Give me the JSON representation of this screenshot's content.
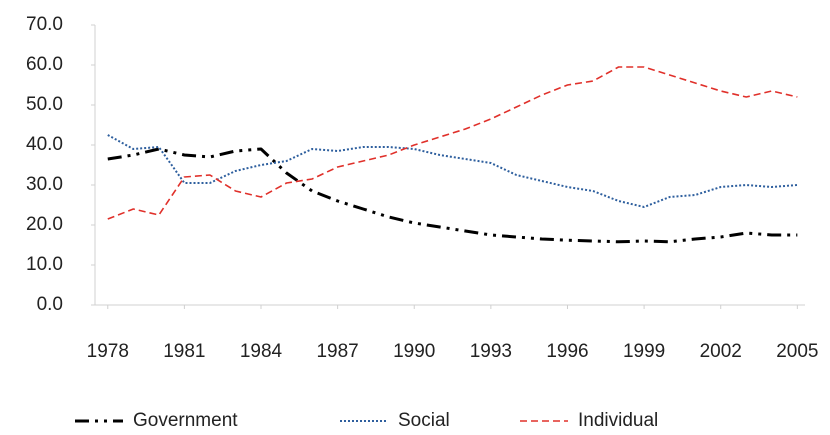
{
  "chart_data": {
    "type": "line",
    "x": [
      1978,
      1979,
      1980,
      1981,
      1982,
      1983,
      1984,
      1985,
      1986,
      1987,
      1988,
      1989,
      1990,
      1991,
      1992,
      1993,
      1994,
      1995,
      1996,
      1997,
      1998,
      1999,
      2000,
      2001,
      2002,
      2003,
      2004,
      2005
    ],
    "series": [
      {
        "name": "Government",
        "color": "#000000",
        "style": "dashdot",
        "values": [
          36.5,
          37.5,
          39,
          37.5,
          37,
          38.5,
          39,
          33,
          28.5,
          26,
          24,
          22,
          20.5,
          19.5,
          18.5,
          17.5,
          17,
          16.5,
          16.2,
          16,
          15.8,
          16,
          15.8,
          16.5,
          17,
          18,
          17.5,
          17.5
        ]
      },
      {
        "name": "Social",
        "color": "#2e5f9e",
        "style": "dotted",
        "values": [
          42.5,
          39,
          39.5,
          30.5,
          30.5,
          33.5,
          35,
          36,
          39,
          38.5,
          39.5,
          39.5,
          39,
          37.5,
          36.5,
          35.5,
          32.5,
          31,
          29.5,
          28.5,
          26,
          24.5,
          27,
          27.5,
          29.5,
          30,
          29.5,
          30
        ]
      },
      {
        "name": "Individual",
        "color": "#e0302a",
        "style": "dashed",
        "values": [
          21.5,
          24,
          22.5,
          32,
          32.5,
          28.5,
          27,
          30.5,
          31.5,
          34.5,
          36,
          37.5,
          40,
          42,
          44,
          46.5,
          49.5,
          52.5,
          55,
          56,
          59.5,
          59.5,
          57.5,
          55.5,
          53.5,
          52,
          53.5,
          52
        ]
      }
    ],
    "xlim": [
      1977.5,
      2005.3
    ],
    "xticks": [
      1978,
      1981,
      1984,
      1987,
      1990,
      1993,
      1996,
      1999,
      2002,
      2005
    ],
    "ylim": [
      0,
      70
    ],
    "yticks": [
      {
        "value": 0,
        "label": "0.0"
      },
      {
        "value": 10,
        "label": "10.0"
      },
      {
        "value": 20,
        "label": "20.0"
      },
      {
        "value": 30,
        "label": "30.0"
      },
      {
        "value": 40,
        "label": "40.0"
      },
      {
        "value": 50,
        "label": "50.0"
      },
      {
        "value": 60,
        "label": "60.0"
      },
      {
        "value": 70,
        "label": "70.0"
      }
    ],
    "legend": "bottom"
  }
}
